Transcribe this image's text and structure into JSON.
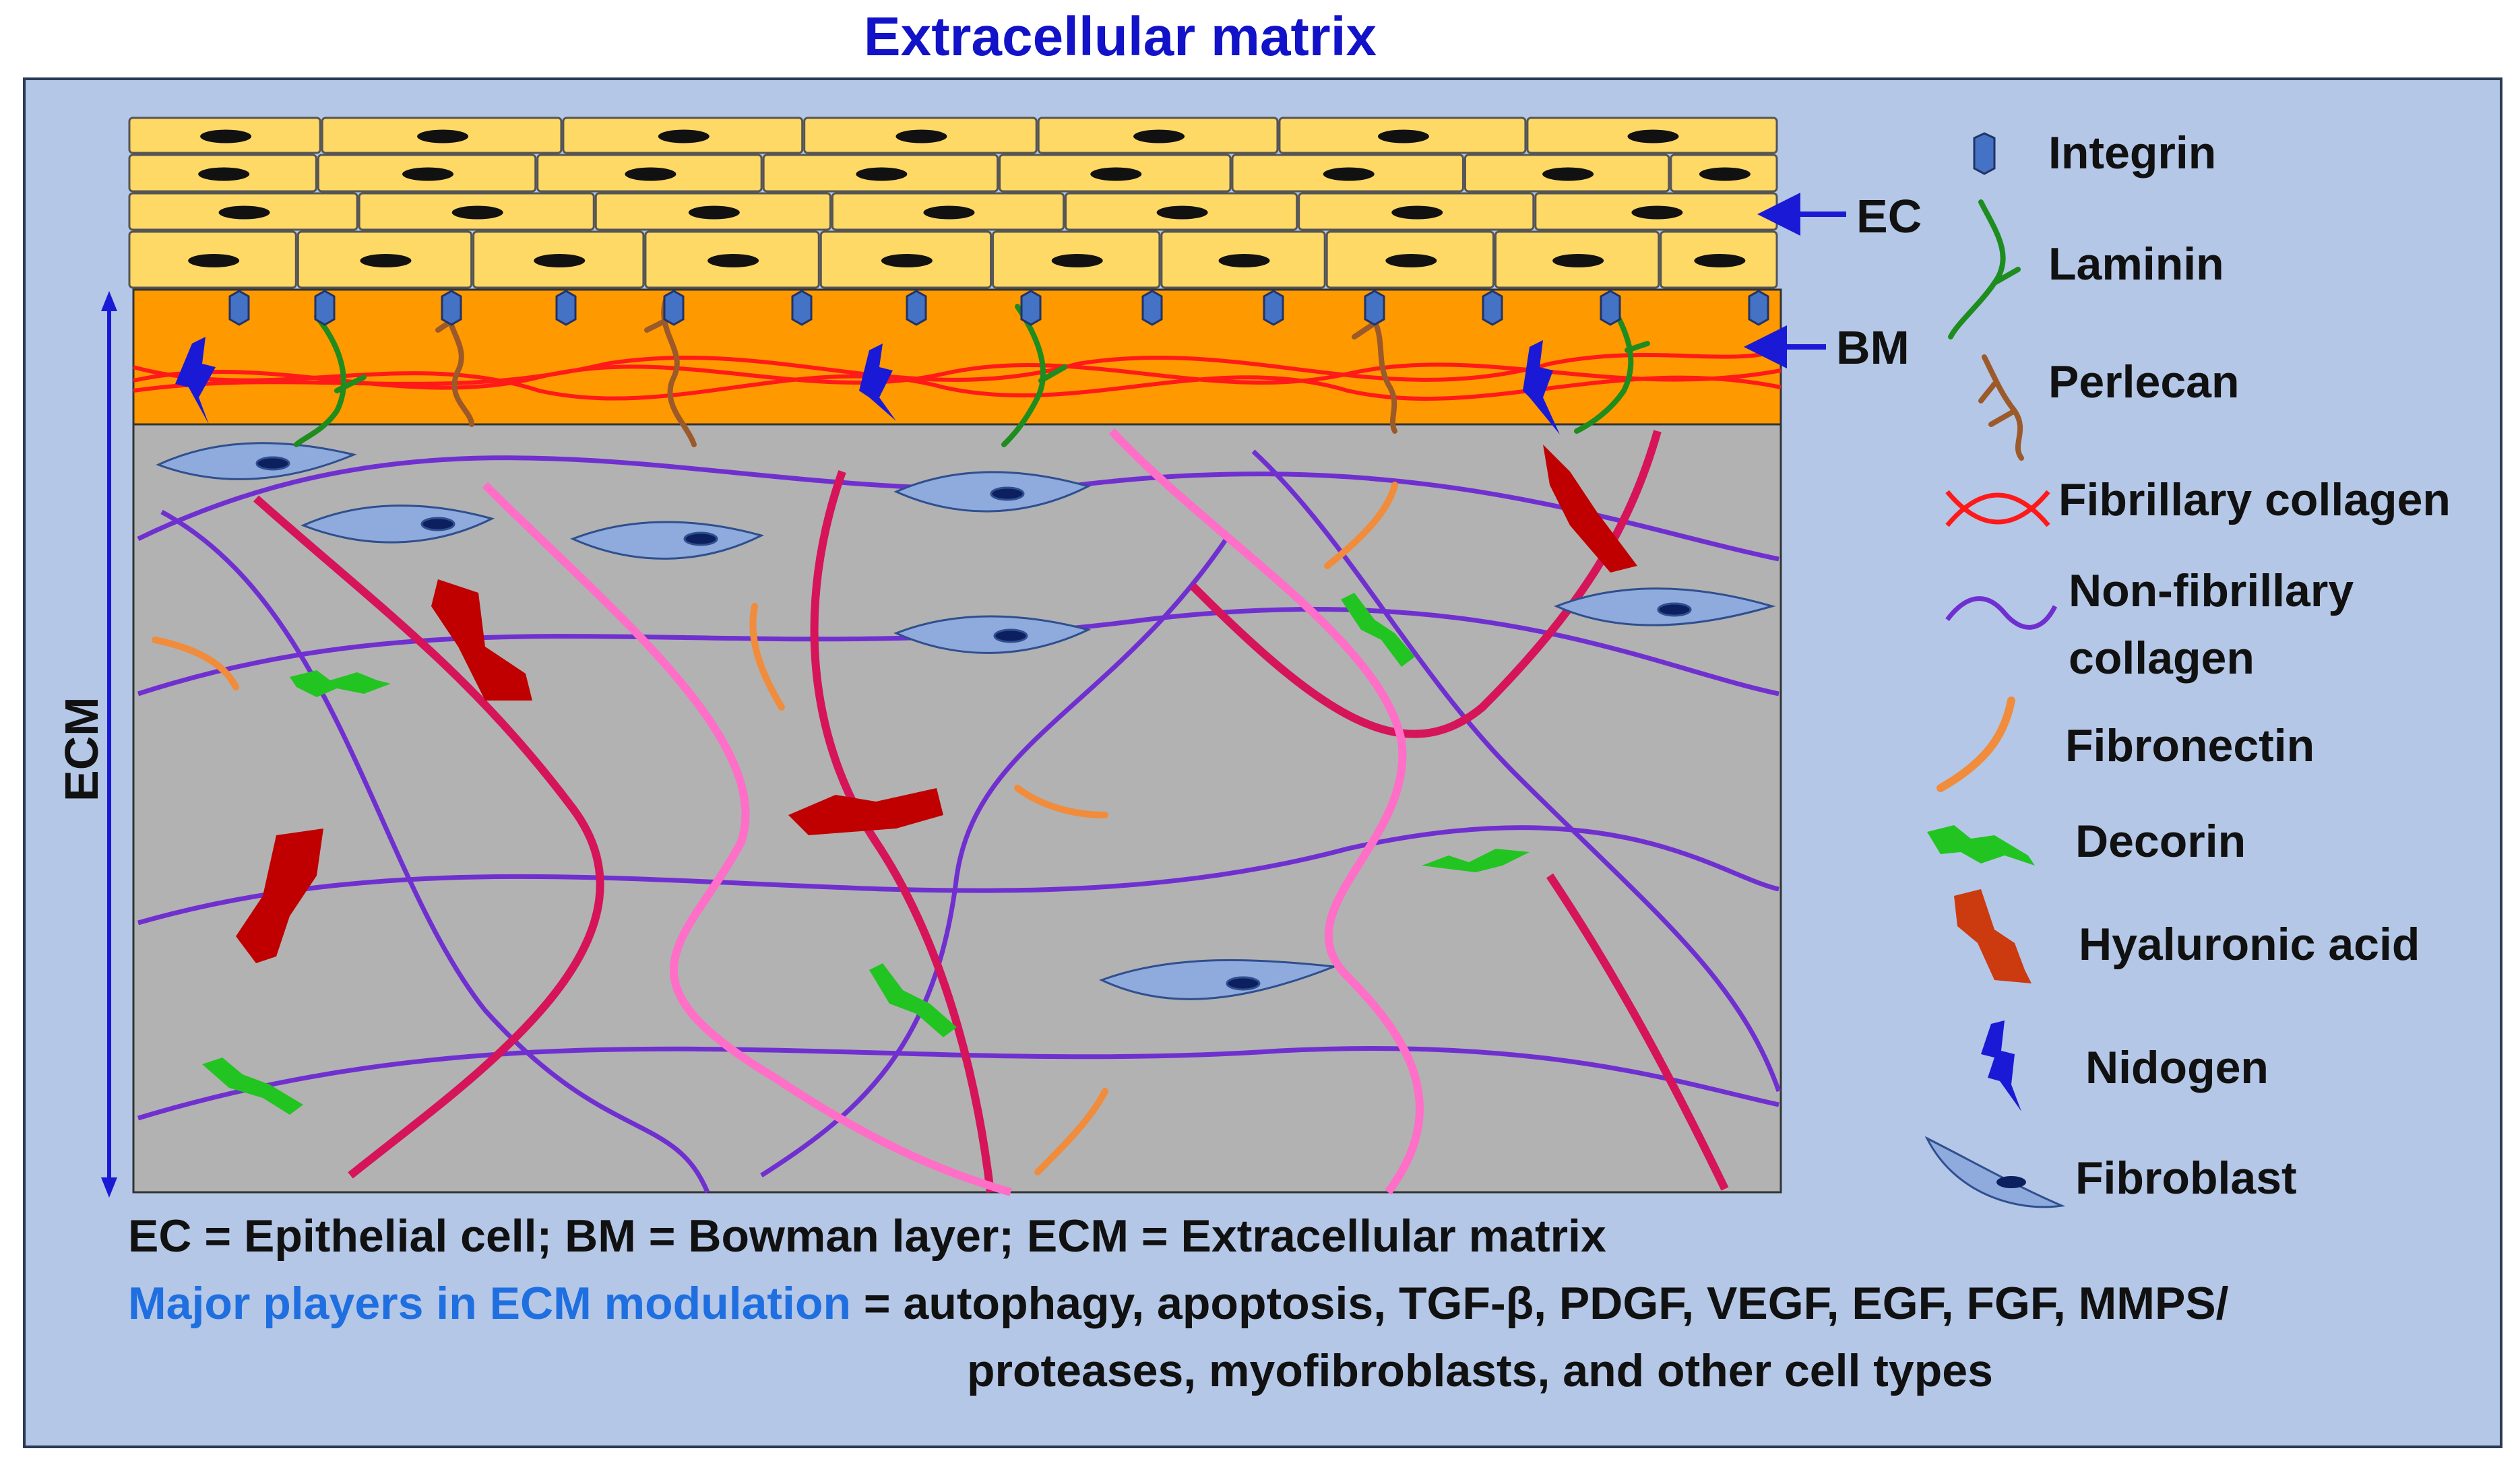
{
  "title": "Extracellular matrix",
  "layer_labels": {
    "ec": "EC",
    "bm": "BM",
    "ecm": "ECM"
  },
  "legend": [
    {
      "icon": "integrin-icon",
      "label": "Integrin"
    },
    {
      "icon": "laminin-icon",
      "label": "Laminin"
    },
    {
      "icon": "perlecan-icon",
      "label": "Perlecan"
    },
    {
      "icon": "fibrillary-collagen-icon",
      "label": "Fibrillary collagen"
    },
    {
      "icon": "non-fibrillary-collagen-icon",
      "label": "Non-fibrillary",
      "label2": "collagen"
    },
    {
      "icon": "fibronectin-icon",
      "label": "Fibronectin"
    },
    {
      "icon": "decorin-icon",
      "label": "Decorin"
    },
    {
      "icon": "hyaluronic-acid-icon",
      "label": "Hyaluronic acid"
    },
    {
      "icon": "nidogen-icon",
      "label": "Nidogen"
    },
    {
      "icon": "fibroblast-icon",
      "label": "Fibroblast"
    }
  ],
  "footer": {
    "abbreviations": "EC = Epithelial cell; BM = Bowman layer; ECM = Extracellular matrix",
    "players_label": "Major players in ECM modulation",
    "players_text": " = autophagy, apoptosis, TGF-β, PDGF, VEGF, EGF, FGF, MMPS/",
    "players_text2": "proteases, myofibroblasts, and other cell types"
  },
  "colors": {
    "background": "#b4c7e7",
    "epithelial_cell": "#ffd966",
    "bowman_layer": "#ff9900",
    "matrix": "#b2b2b2",
    "title": "#1212c8",
    "highlight": "#1f6fe0",
    "integrin": "#4472c4",
    "laminin": "#1e8c1e",
    "perlecan": "#9c5a2a",
    "fibrillary_collagen": "#ff1a1a",
    "non_fibrillary_collagen": "#7030d0",
    "fibronectin": "#f08c3c",
    "decorin": "#22c422",
    "hyaluronic_acid": "#c00000",
    "nidogen": "#1a1ad6",
    "fibroblast": "#8faadc",
    "thick_fiber": "#d6145a",
    "pink_fiber": "#ff6ec7"
  }
}
